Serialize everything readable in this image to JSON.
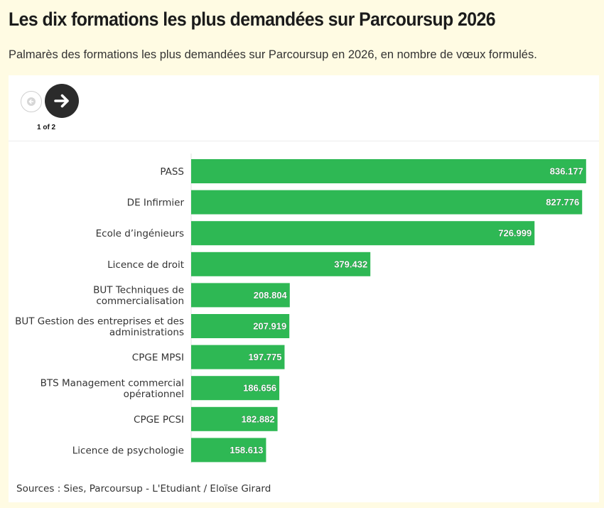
{
  "header": {
    "title": "Les dix formations les plus demandées sur Parcoursup 2026",
    "subtitle": "Palmarès des formations les plus demandées sur Parcoursup en 2026, en nombre de vœux formulés."
  },
  "navigation": {
    "prev_icon": "arrow-left-icon",
    "next_icon": "arrow-right-icon",
    "pager_text": "1 of 2"
  },
  "colors": {
    "bar": "#2eb854",
    "background": "#fffbe3",
    "nav_active": "#2b2b2b"
  },
  "chart_data": {
    "type": "bar",
    "orientation": "horizontal",
    "categories": [
      [
        "PASS"
      ],
      [
        "DE Infirmier"
      ],
      [
        "Ecole d’ingénieurs"
      ],
      [
        "Licence de droit"
      ],
      [
        "BUT Techniques de",
        "commercialisation"
      ],
      [
        "BUT Gestion des entreprises et des",
        "administrations"
      ],
      [
        "CPGE MPSI"
      ],
      [
        "BTS Management commercial",
        "opérationnel"
      ],
      [
        "CPGE PCSI"
      ],
      [
        "Licence de psychologie"
      ]
    ],
    "values": [
      836177,
      827776,
      726999,
      379432,
      208804,
      207919,
      197775,
      186656,
      182882,
      158613
    ],
    "value_labels": [
      "836.177",
      "827.776",
      "726.999",
      "379.432",
      "208.804",
      "207.919",
      "197.775",
      "186.656",
      "182.882",
      "158.613"
    ],
    "xlim": [
      0,
      850000
    ],
    "grid": false,
    "legend": "none"
  },
  "footer": {
    "source": "Sources : Sies, Parcoursup - L'Etudiant / Eloïse Girard"
  }
}
